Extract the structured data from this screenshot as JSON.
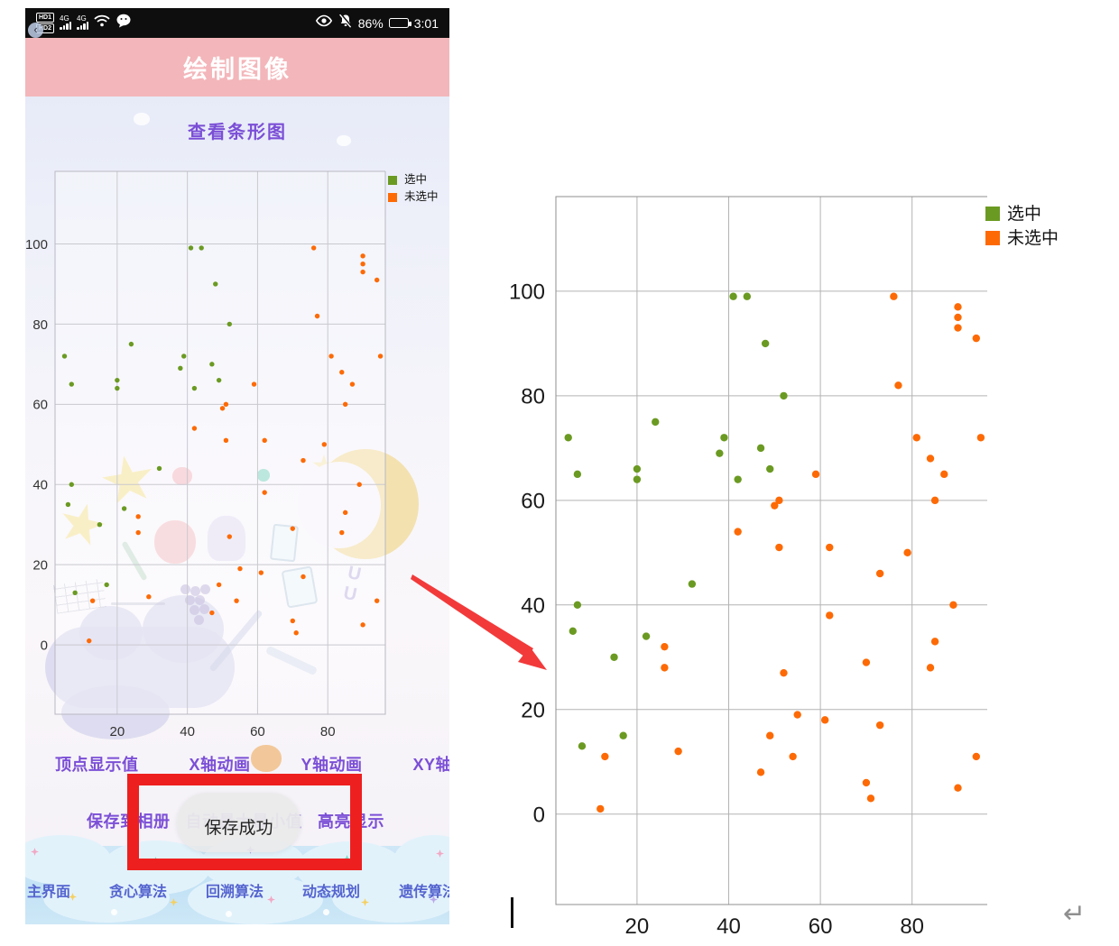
{
  "phone": {
    "status_bar": {
      "sim_badges": [
        "HD1",
        "HD2"
      ],
      "network_label": "4G",
      "battery_percent": "86%",
      "time": "3:01"
    },
    "header": {
      "title": "绘制图像"
    },
    "actions": {
      "view_bar_chart": "查看条形图",
      "row1": [
        "顶点显示值",
        "X轴动画",
        "Y轴动画",
        "XY轴动画"
      ],
      "row2": [
        "保存到相册",
        "自动最大最小值",
        "高亮显示"
      ]
    },
    "toast": "保存成功",
    "nav": [
      "主界面",
      "贪心算法",
      "回溯算法",
      "动态规划",
      "遗传算法"
    ]
  },
  "chart_data": {
    "type": "scatter",
    "title": "",
    "xlabel": "",
    "ylabel": "",
    "grid": true,
    "legend_position": "top-right",
    "x_ticks": [
      20,
      40,
      60,
      80
    ],
    "y_ticks": [
      0,
      20,
      40,
      60,
      80,
      100
    ],
    "xlim": [
      2.3,
      96.4
    ],
    "ylim": [
      -17.3,
      118.1
    ],
    "legend": [
      {
        "label": "选中",
        "color": "#6b9a22"
      },
      {
        "label": "未选中",
        "color": "#fd6a05"
      }
    ],
    "series": [
      {
        "name": "选中",
        "color": "#6b9a22",
        "points": [
          [
            41,
            99
          ],
          [
            44,
            99
          ],
          [
            48,
            90
          ],
          [
            52,
            80
          ],
          [
            24,
            75
          ],
          [
            5,
            72
          ],
          [
            39,
            72
          ],
          [
            47,
            70
          ],
          [
            38,
            69
          ],
          [
            20,
            66
          ],
          [
            49,
            66
          ],
          [
            7,
            65
          ],
          [
            20,
            64
          ],
          [
            42,
            64
          ],
          [
            32,
            44
          ],
          [
            7,
            40
          ],
          [
            6,
            35
          ],
          [
            22,
            34
          ],
          [
            15,
            30
          ],
          [
            17,
            15
          ],
          [
            8,
            13
          ]
        ]
      },
      {
        "name": "未选中",
        "color": "#fd6a05",
        "points": [
          [
            76,
            99
          ],
          [
            90,
            97
          ],
          [
            90,
            95
          ],
          [
            90,
            93
          ],
          [
            94,
            91
          ],
          [
            77,
            82
          ],
          [
            81,
            72
          ],
          [
            95,
            72
          ],
          [
            84,
            68
          ],
          [
            87,
            65
          ],
          [
            59,
            65
          ],
          [
            85,
            60
          ],
          [
            51,
            60
          ],
          [
            50,
            59
          ],
          [
            42,
            54
          ],
          [
            51,
            51
          ],
          [
            62,
            51
          ],
          [
            79,
            50
          ],
          [
            73,
            46
          ],
          [
            89,
            40
          ],
          [
            62,
            38
          ],
          [
            85,
            33
          ],
          [
            26,
            32
          ],
          [
            70,
            29
          ],
          [
            84,
            28
          ],
          [
            26,
            28
          ],
          [
            52,
            27
          ],
          [
            55,
            19
          ],
          [
            61,
            18
          ],
          [
            73,
            17
          ],
          [
            49,
            15
          ],
          [
            29,
            12
          ],
          [
            13,
            11
          ],
          [
            54,
            11
          ],
          [
            94,
            11
          ],
          [
            47,
            8
          ],
          [
            70,
            6
          ],
          [
            90,
            5
          ],
          [
            71,
            3
          ],
          [
            12,
            1
          ]
        ]
      }
    ]
  },
  "annotations": {
    "text_cursor": "|",
    "return_symbol": "↵"
  }
}
